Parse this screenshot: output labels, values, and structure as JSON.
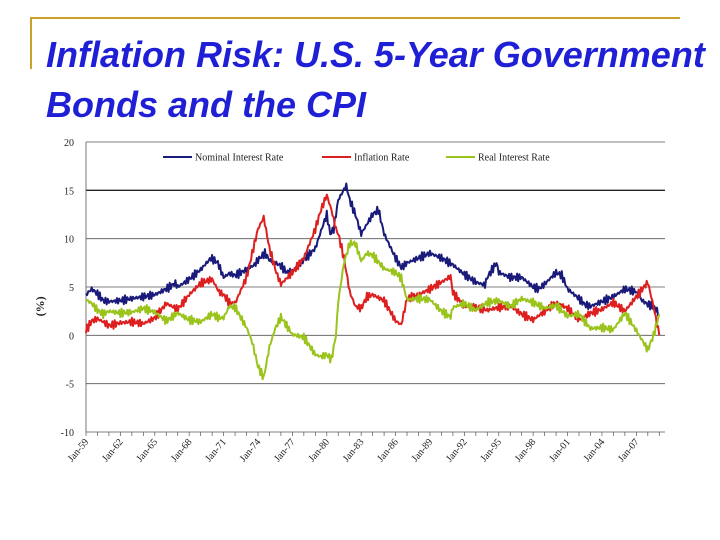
{
  "slide": {
    "title": "Inflation Risk:  U.S. 5-Year Government Bonds and the CPI",
    "accent_color": "#c9a227",
    "title_color": "#1f1fd6"
  },
  "chart_data": {
    "type": "line",
    "title": "",
    "ylabel": "(%)",
    "xlabel": "",
    "ylim": [
      -10,
      20
    ],
    "yticks": [
      20,
      15,
      10,
      5,
      0,
      -5,
      -10
    ],
    "xlim": [
      1959,
      2009.5
    ],
    "xticks": [
      "Jan-59",
      "Jan-62",
      "Jan-65",
      "Jan-68",
      "Jan-71",
      "Jan-74",
      "Jan-77",
      "Jan-80",
      "Jan-83",
      "Jan-86",
      "Jan-89",
      "Jan-92",
      "Jan-95",
      "Jan-98",
      "Jan-01",
      "Jan-04",
      "Jan-07"
    ],
    "xtick_years": [
      1959,
      1962,
      1965,
      1968,
      1971,
      1974,
      1977,
      1980,
      1983,
      1986,
      1989,
      1992,
      1995,
      1998,
      2001,
      2004,
      2007
    ],
    "legend_position": "top",
    "series": [
      {
        "name": "Nominal Interest Rate",
        "color": "#1a1a7a",
        "x": [
          1959,
          1959.5,
          1960,
          1960.5,
          1961,
          1962,
          1963,
          1964,
          1965,
          1966,
          1966.8,
          1967,
          1968,
          1969,
          1969.9,
          1970.5,
          1971,
          1971.5,
          1972,
          1973,
          1973.7,
          1974,
          1974.6,
          1975,
          1976,
          1976.5,
          1977,
          1978,
          1979,
          1979.5,
          1980,
          1980.3,
          1980.6,
          1981,
          1981.7,
          1982,
          1982.5,
          1983,
          1984,
          1984.5,
          1985,
          1986,
          1986.5,
          1987,
          1988,
          1989,
          1990,
          1991,
          1992,
          1993,
          1993.8,
          1994,
          1994.8,
          1995,
          1996,
          1997,
          1998,
          1998.5,
          1999,
          2000,
          2000.5,
          2001,
          2002,
          2002.5,
          2003,
          2004,
          2005,
          2006,
          2007,
          2007.5,
          2008,
          2008.5,
          2009
        ],
        "values": [
          4.2,
          4.8,
          4.3,
          3.6,
          3.5,
          3.6,
          3.8,
          4.0,
          4.2,
          4.8,
          5.4,
          5.0,
          5.8,
          6.8,
          8.0,
          7.5,
          6.0,
          6.4,
          6.2,
          6.8,
          7.3,
          7.8,
          8.5,
          7.8,
          7.2,
          6.5,
          6.6,
          7.8,
          9.0,
          10.8,
          12.5,
          10.5,
          11.0,
          14.0,
          15.5,
          14.0,
          12.5,
          10.5,
          12.5,
          13.0,
          10.5,
          8.0,
          7.0,
          7.5,
          8.0,
          8.5,
          8.0,
          7.3,
          6.3,
          5.5,
          5.2,
          6.0,
          7.5,
          6.5,
          6.0,
          6.0,
          5.0,
          4.8,
          5.3,
          6.5,
          6.2,
          4.8,
          3.8,
          3.2,
          3.0,
          3.5,
          4.0,
          4.8,
          4.5,
          3.6,
          3.2,
          3.0,
          2.2
        ]
      },
      {
        "name": "Inflation Rate",
        "color": "#dd1f1f",
        "x": [
          1959,
          1959.5,
          1960,
          1960.5,
          1961,
          1962,
          1963,
          1964,
          1965,
          1966,
          1967,
          1968,
          1969,
          1970,
          1970.6,
          1971,
          1971.5,
          1972,
          1973,
          1973.5,
          1974,
          1974.5,
          1975,
          1975.6,
          1976,
          1977,
          1978,
          1979,
          1979.5,
          1980,
          1980.4,
          1980.8,
          1981,
          1981.5,
          1982,
          1982.5,
          1983,
          1983.5,
          1984,
          1985,
          1986,
          1986.5,
          1987,
          1988,
          1989,
          1990,
          1990.8,
          1991,
          1992,
          1993,
          1994,
          1995,
          1996,
          1997,
          1998,
          1999,
          2000,
          2001,
          2002,
          2003,
          2004,
          2005,
          2006,
          2007,
          2008,
          2008.5,
          2009
        ],
        "values": [
          0.5,
          1.5,
          1.7,
          1.4,
          1.0,
          1.3,
          1.4,
          1.2,
          1.8,
          3.3,
          2.7,
          4.2,
          5.4,
          5.8,
          4.5,
          4.2,
          3.4,
          3.3,
          6.0,
          8.5,
          11.0,
          12.2,
          9.0,
          6.5,
          5.3,
          6.5,
          8.0,
          11.0,
          13.0,
          14.5,
          13.0,
          11.0,
          10.5,
          8.0,
          4.5,
          3.0,
          2.8,
          4.0,
          4.2,
          3.6,
          1.5,
          1.1,
          3.8,
          4.2,
          4.8,
          5.5,
          6.1,
          4.4,
          3.0,
          2.9,
          2.6,
          2.9,
          3.0,
          2.2,
          1.6,
          2.5,
          3.4,
          2.8,
          1.6,
          2.3,
          2.7,
          3.4,
          2.5,
          4.0,
          5.5,
          3.0,
          0.0
        ]
      },
      {
        "name": "Real Interest Rate",
        "color": "#9ac31c",
        "x": [
          1959,
          1959.5,
          1960,
          1960.5,
          1961,
          1962,
          1963,
          1964,
          1965,
          1966,
          1967,
          1968,
          1969,
          1970,
          1970.6,
          1971,
          1971.5,
          1972,
          1973,
          1973.5,
          1974,
          1974.5,
          1975,
          1975.5,
          1976,
          1977,
          1978,
          1979,
          1979.5,
          1980,
          1980.4,
          1980.8,
          1981,
          1981.5,
          1982,
          1982.5,
          1983,
          1983.5,
          1984,
          1985,
          1986,
          1986.5,
          1987,
          1988,
          1989,
          1990,
          1990.8,
          1991,
          1992,
          1993,
          1994,
          1995,
          1996,
          1997,
          1998,
          1999,
          2000,
          2001,
          2002,
          2003,
          2004,
          2005,
          2006,
          2007,
          2008,
          2008.5,
          2009
        ],
        "values": [
          3.7,
          3.3,
          2.6,
          2.2,
          2.5,
          2.3,
          2.4,
          2.8,
          2.4,
          1.5,
          2.3,
          1.6,
          1.4,
          2.2,
          1.8,
          1.8,
          3.0,
          2.9,
          0.8,
          -0.7,
          -3.2,
          -4.4,
          -1.2,
          0.7,
          1.9,
          0.1,
          -0.2,
          -2.0,
          -2.2,
          -2.0,
          -2.5,
          0.0,
          3.5,
          7.5,
          9.5,
          9.5,
          7.7,
          8.5,
          8.3,
          6.9,
          6.5,
          5.9,
          3.7,
          3.8,
          3.7,
          2.5,
          1.9,
          2.9,
          3.3,
          2.6,
          3.4,
          3.6,
          3.0,
          3.8,
          3.4,
          2.8,
          3.1,
          2.0,
          2.2,
          0.7,
          0.8,
          0.6,
          2.3,
          0.5,
          -1.5,
          0.0,
          2.2
        ]
      }
    ]
  }
}
